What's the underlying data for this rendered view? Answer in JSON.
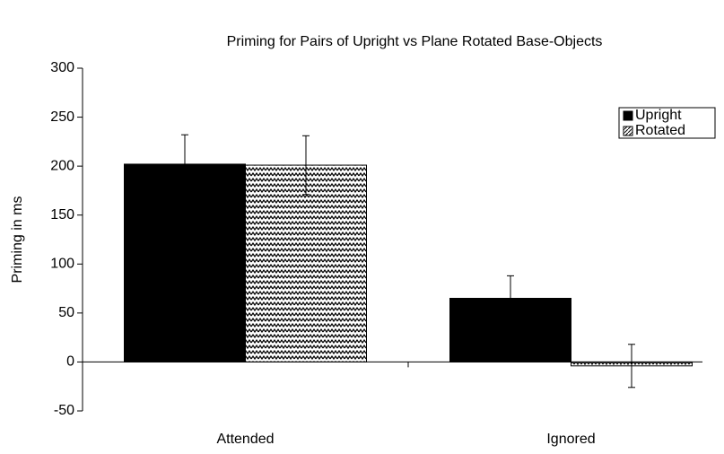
{
  "chart_data": {
    "type": "bar",
    "title": "Priming for Pairs of Upright vs Plane Rotated Base-Objects",
    "ylabel": "Priming in ms",
    "categories": [
      "Attended",
      "Ignored"
    ],
    "series": [
      {
        "name": "Upright",
        "color": "#000000",
        "hatch": false,
        "values": [
          202,
          65
        ],
        "errors": [
          30,
          23
        ]
      },
      {
        "name": "Rotated",
        "color": "#000000",
        "hatch": true,
        "values": [
          201,
          -4
        ],
        "errors": [
          30,
          22
        ]
      }
    ],
    "ylim": [
      -50,
      300
    ],
    "yticks": [
      -50,
      0,
      50,
      100,
      150,
      200,
      250,
      300
    ],
    "grid": false,
    "legend": "top-right"
  }
}
